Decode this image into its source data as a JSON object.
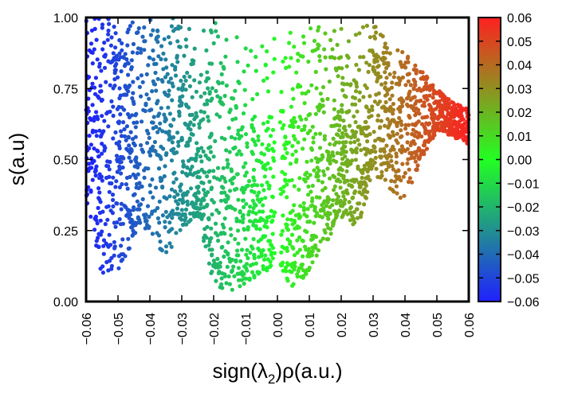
{
  "chart_data": {
    "type": "scatter",
    "xlabel": {
      "prefix": "sign(",
      "symbol": "λ",
      "subscript": "2",
      "suffix": ")ρ(a.u.)"
    },
    "ylabel": "s(a.u)",
    "xlim": [
      -0.06,
      0.06
    ],
    "ylim": [
      0.0,
      1.0
    ],
    "xticks": [
      "−0.06",
      "−0.05",
      "−0.04",
      "−0.03",
      "−0.02",
      "−0.01",
      "0.00",
      "0.01",
      "0.02",
      "0.03",
      "0.04",
      "0.05",
      "0.06"
    ],
    "yticks": [
      "0.00",
      "0.25",
      "0.50",
      "0.75",
      "1.00"
    ],
    "grid": false,
    "colorbar": {
      "range": [
        -0.06,
        0.06
      ],
      "labels": [
        "0.06",
        "0.05",
        "0.04",
        "0.03",
        "0.02",
        "0.01",
        "0.00",
        "−0.01",
        "−0.02",
        "−0.03",
        "−0.04",
        "−0.05",
        "−0.06"
      ],
      "colors": {
        "min": "#2020ff",
        "mid": "#22ff22",
        "max": "#ff2020"
      }
    },
    "point_color_mapping": "color = x value (sign(λ2)ρ)",
    "envelope": {
      "x": [
        -0.06,
        -0.055,
        -0.05,
        -0.045,
        -0.04,
        -0.035,
        -0.03,
        -0.025,
        -0.02,
        -0.015,
        -0.01,
        -0.005,
        0.0,
        0.005,
        0.01,
        0.015,
        0.02,
        0.025,
        0.03,
        0.035,
        0.04,
        0.045,
        0.05,
        0.055,
        0.06
      ],
      "s_min": [
        0.35,
        0.08,
        0.1,
        0.2,
        0.25,
        0.15,
        0.25,
        0.3,
        0.05,
        0.03,
        0.05,
        0.08,
        0.15,
        0.03,
        0.1,
        0.2,
        0.3,
        0.25,
        0.45,
        0.4,
        0.35,
        0.5,
        0.6,
        0.58,
        0.55
      ],
      "s_max": [
        1.0,
        1.0,
        1.0,
        1.0,
        1.0,
        1.0,
        1.0,
        1.0,
        1.0,
        1.0,
        1.0,
        1.0,
        1.0,
        1.0,
        1.0,
        1.0,
        1.0,
        1.0,
        1.0,
        0.92,
        0.88,
        0.82,
        0.75,
        0.7,
        0.68
      ]
    }
  }
}
